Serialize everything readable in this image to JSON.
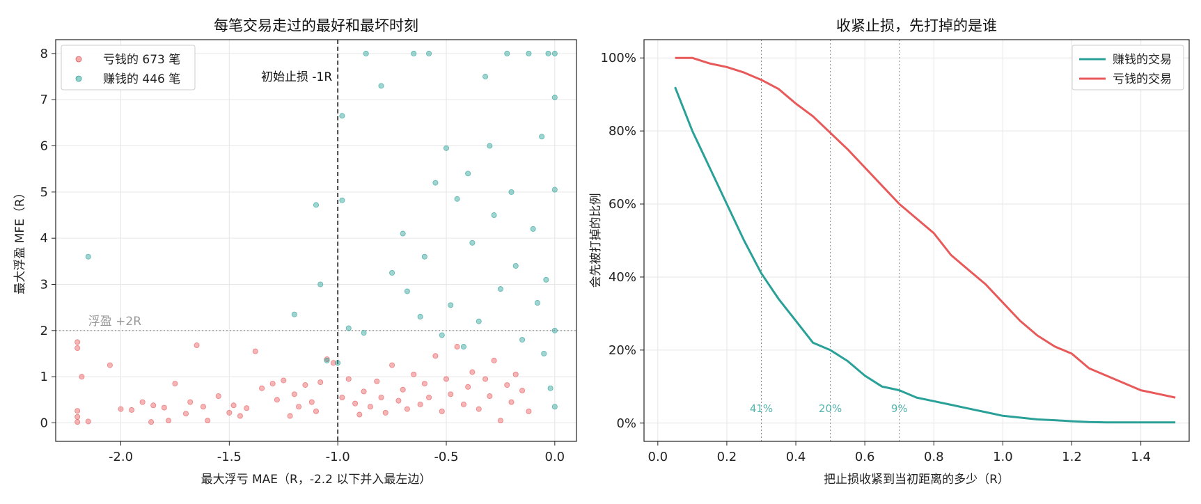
{
  "chart_data": [
    {
      "type": "scatter",
      "title": "每笔交易走过的最好和最坏时刻",
      "xlabel": "最大浮亏 MAE（R，-2.2 以下并入最左边）",
      "ylabel": "最大浮盈 MFE（R）",
      "xlim": [
        -2.3,
        0.1
      ],
      "ylim": [
        -0.4,
        8.3
      ],
      "xticks": [
        -2.0,
        -1.5,
        -1.0,
        -0.5,
        0.0
      ],
      "xtick_labels": [
        "-2.0",
        "-1.5",
        "-1.0",
        "-0.5",
        "0.0"
      ],
      "yticks": [
        0,
        1,
        2,
        3,
        4,
        5,
        6,
        7,
        8
      ],
      "ytick_labels": [
        "0",
        "1",
        "2",
        "3",
        "4",
        "5",
        "6",
        "7",
        "8"
      ],
      "grid": true,
      "legend_position": "top-left",
      "annotations": {
        "vline_x": -1.0,
        "vline_label": "初始止损 -1R",
        "hline_y": 2.0,
        "hline_label": "浮盈 +2R"
      },
      "series": [
        {
          "name": "亏钱的 673 笔",
          "color": "#e8595a",
          "points": [
            [
              -2.2,
              1.75
            ],
            [
              -2.2,
              1.62
            ],
            [
              -2.2,
              0.26
            ],
            [
              -2.2,
              0.13
            ],
            [
              -2.2,
              0.02
            ],
            [
              -2.18,
              1.0
            ],
            [
              -2.15,
              0.03
            ],
            [
              -2.05,
              1.25
            ],
            [
              -2.0,
              0.3
            ],
            [
              -1.95,
              0.28
            ],
            [
              -1.9,
              0.45
            ],
            [
              -1.86,
              0.02
            ],
            [
              -1.85,
              0.38
            ],
            [
              -1.8,
              0.33
            ],
            [
              -1.78,
              0.05
            ],
            [
              -1.75,
              0.85
            ],
            [
              -1.7,
              0.2
            ],
            [
              -1.68,
              0.45
            ],
            [
              -1.65,
              1.68
            ],
            [
              -1.62,
              0.35
            ],
            [
              -1.6,
              0.05
            ],
            [
              -1.55,
              0.58
            ],
            [
              -1.5,
              0.22
            ],
            [
              -1.48,
              0.38
            ],
            [
              -1.45,
              0.15
            ],
            [
              -1.42,
              0.32
            ],
            [
              -1.38,
              1.55
            ],
            [
              -1.35,
              0.75
            ],
            [
              -1.3,
              0.85
            ],
            [
              -1.28,
              0.5
            ],
            [
              -1.25,
              0.92
            ],
            [
              -1.22,
              0.15
            ],
            [
              -1.2,
              0.62
            ],
            [
              -1.18,
              0.35
            ],
            [
              -1.15,
              0.82
            ],
            [
              -1.12,
              0.45
            ],
            [
              -1.1,
              0.25
            ],
            [
              -1.08,
              0.88
            ],
            [
              -1.05,
              1.38
            ],
            [
              -1.02,
              1.3
            ],
            [
              -0.98,
              0.55
            ],
            [
              -0.95,
              0.95
            ],
            [
              -0.92,
              0.42
            ],
            [
              -0.9,
              0.18
            ],
            [
              -0.88,
              0.68
            ],
            [
              -0.85,
              0.35
            ],
            [
              -0.82,
              0.9
            ],
            [
              -0.8,
              0.55
            ],
            [
              -0.78,
              0.22
            ],
            [
              -0.75,
              1.25
            ],
            [
              -0.72,
              0.48
            ],
            [
              -0.7,
              0.72
            ],
            [
              -0.68,
              0.3
            ],
            [
              -0.65,
              1.05
            ],
            [
              -0.62,
              0.4
            ],
            [
              -0.6,
              0.85
            ],
            [
              -0.58,
              0.55
            ],
            [
              -0.55,
              1.45
            ],
            [
              -0.52,
              0.25
            ],
            [
              -0.5,
              0.95
            ],
            [
              -0.48,
              0.62
            ],
            [
              -0.45,
              1.65
            ],
            [
              -0.42,
              0.4
            ],
            [
              -0.4,
              0.78
            ],
            [
              -0.38,
              1.1
            ],
            [
              -0.35,
              0.3
            ],
            [
              -0.32,
              0.95
            ],
            [
              -0.3,
              0.58
            ],
            [
              -0.28,
              1.35
            ],
            [
              -0.25,
              0.05
            ],
            [
              -0.22,
              0.82
            ],
            [
              -0.2,
              0.45
            ],
            [
              -0.18,
              1.05
            ],
            [
              -0.15,
              0.7
            ],
            [
              -0.12,
              0.25
            ]
          ]
        },
        {
          "name": "赚钱的 446 笔",
          "color": "#2aa198",
          "points": [
            [
              -2.15,
              3.6
            ],
            [
              -1.2,
              2.35
            ],
            [
              -1.1,
              4.72
            ],
            [
              -1.08,
              3.0
            ],
            [
              -1.05,
              1.35
            ],
            [
              -1.0,
              1.3
            ],
            [
              -0.98,
              6.65
            ],
            [
              -0.98,
              4.82
            ],
            [
              -0.95,
              2.05
            ],
            [
              -0.88,
              1.95
            ],
            [
              -0.87,
              8.0
            ],
            [
              -0.8,
              7.3
            ],
            [
              -0.75,
              3.25
            ],
            [
              -0.7,
              4.1
            ],
            [
              -0.68,
              2.85
            ],
            [
              -0.65,
              8.0
            ],
            [
              -0.62,
              2.3
            ],
            [
              -0.6,
              3.6
            ],
            [
              -0.58,
              8.0
            ],
            [
              -0.55,
              5.2
            ],
            [
              -0.52,
              1.9
            ],
            [
              -0.5,
              5.95
            ],
            [
              -0.48,
              2.55
            ],
            [
              -0.45,
              4.85
            ],
            [
              -0.42,
              1.65
            ],
            [
              -0.4,
              5.4
            ],
            [
              -0.38,
              3.9
            ],
            [
              -0.35,
              2.2
            ],
            [
              -0.32,
              7.5
            ],
            [
              -0.3,
              6.0
            ],
            [
              -0.28,
              4.5
            ],
            [
              -0.25,
              2.9
            ],
            [
              -0.22,
              8.0
            ],
            [
              -0.2,
              5.0
            ],
            [
              -0.18,
              3.4
            ],
            [
              -0.15,
              1.8
            ],
            [
              -0.12,
              8.0
            ],
            [
              -0.1,
              4.2
            ],
            [
              -0.08,
              2.6
            ],
            [
              -0.06,
              6.2
            ],
            [
              -0.05,
              1.5
            ],
            [
              -0.04,
              3.1
            ],
            [
              -0.03,
              8.0
            ],
            [
              -0.02,
              0.75
            ],
            [
              0.0,
              8.0
            ],
            [
              0.0,
              7.05
            ],
            [
              0.0,
              5.05
            ],
            [
              0.0,
              2.0
            ],
            [
              0.0,
              0.35
            ]
          ]
        }
      ]
    },
    {
      "type": "line",
      "title": "收紧止损，先打掉的是谁",
      "xlabel": "把止损收紧到当初距离的多少（R）",
      "ylabel": "会先被打掉的比例",
      "xlim": [
        -0.04,
        1.54
      ],
      "ylim": [
        -0.05,
        1.05
      ],
      "xticks": [
        0.0,
        0.2,
        0.4,
        0.6,
        0.8,
        1.0,
        1.2,
        1.4
      ],
      "xtick_labels": [
        "0.0",
        "0.2",
        "0.4",
        "0.6",
        "0.8",
        "1.0",
        "1.2",
        "1.4"
      ],
      "yticks": [
        0,
        0.2,
        0.4,
        0.6,
        0.8,
        1.0
      ],
      "ytick_labels": [
        "0%",
        "20%",
        "40%",
        "60%",
        "80%",
        "100%"
      ],
      "grid": true,
      "legend_position": "top-right",
      "vlines": [
        {
          "x": 0.3,
          "label": "41%"
        },
        {
          "x": 0.5,
          "label": "20%"
        },
        {
          "x": 0.7,
          "label": "9%"
        }
      ],
      "x": [
        0.05,
        0.1,
        0.15,
        0.2,
        0.25,
        0.3,
        0.35,
        0.4,
        0.45,
        0.5,
        0.55,
        0.6,
        0.65,
        0.7,
        0.75,
        0.8,
        0.85,
        0.9,
        0.95,
        1.0,
        1.05,
        1.1,
        1.15,
        1.2,
        1.25,
        1.3,
        1.35,
        1.4,
        1.45,
        1.5
      ],
      "series": [
        {
          "name": "赚钱的交易",
          "color": "#2aa198",
          "values": [
            0.92,
            0.8,
            0.7,
            0.6,
            0.5,
            0.41,
            0.34,
            0.28,
            0.22,
            0.2,
            0.17,
            0.13,
            0.1,
            0.09,
            0.07,
            0.06,
            0.05,
            0.04,
            0.03,
            0.02,
            0.015,
            0.01,
            0.008,
            0.005,
            0.003,
            0.002,
            0.002,
            0.002,
            0.002,
            0.002
          ]
        },
        {
          "name": "亏钱的交易",
          "color": "#e8595a",
          "values": [
            1.0,
            1.0,
            0.985,
            0.975,
            0.96,
            0.94,
            0.915,
            0.875,
            0.84,
            0.795,
            0.75,
            0.7,
            0.65,
            0.6,
            0.56,
            0.52,
            0.46,
            0.42,
            0.38,
            0.33,
            0.28,
            0.24,
            0.21,
            0.19,
            0.15,
            0.13,
            0.11,
            0.09,
            0.08,
            0.07
          ]
        }
      ]
    }
  ]
}
